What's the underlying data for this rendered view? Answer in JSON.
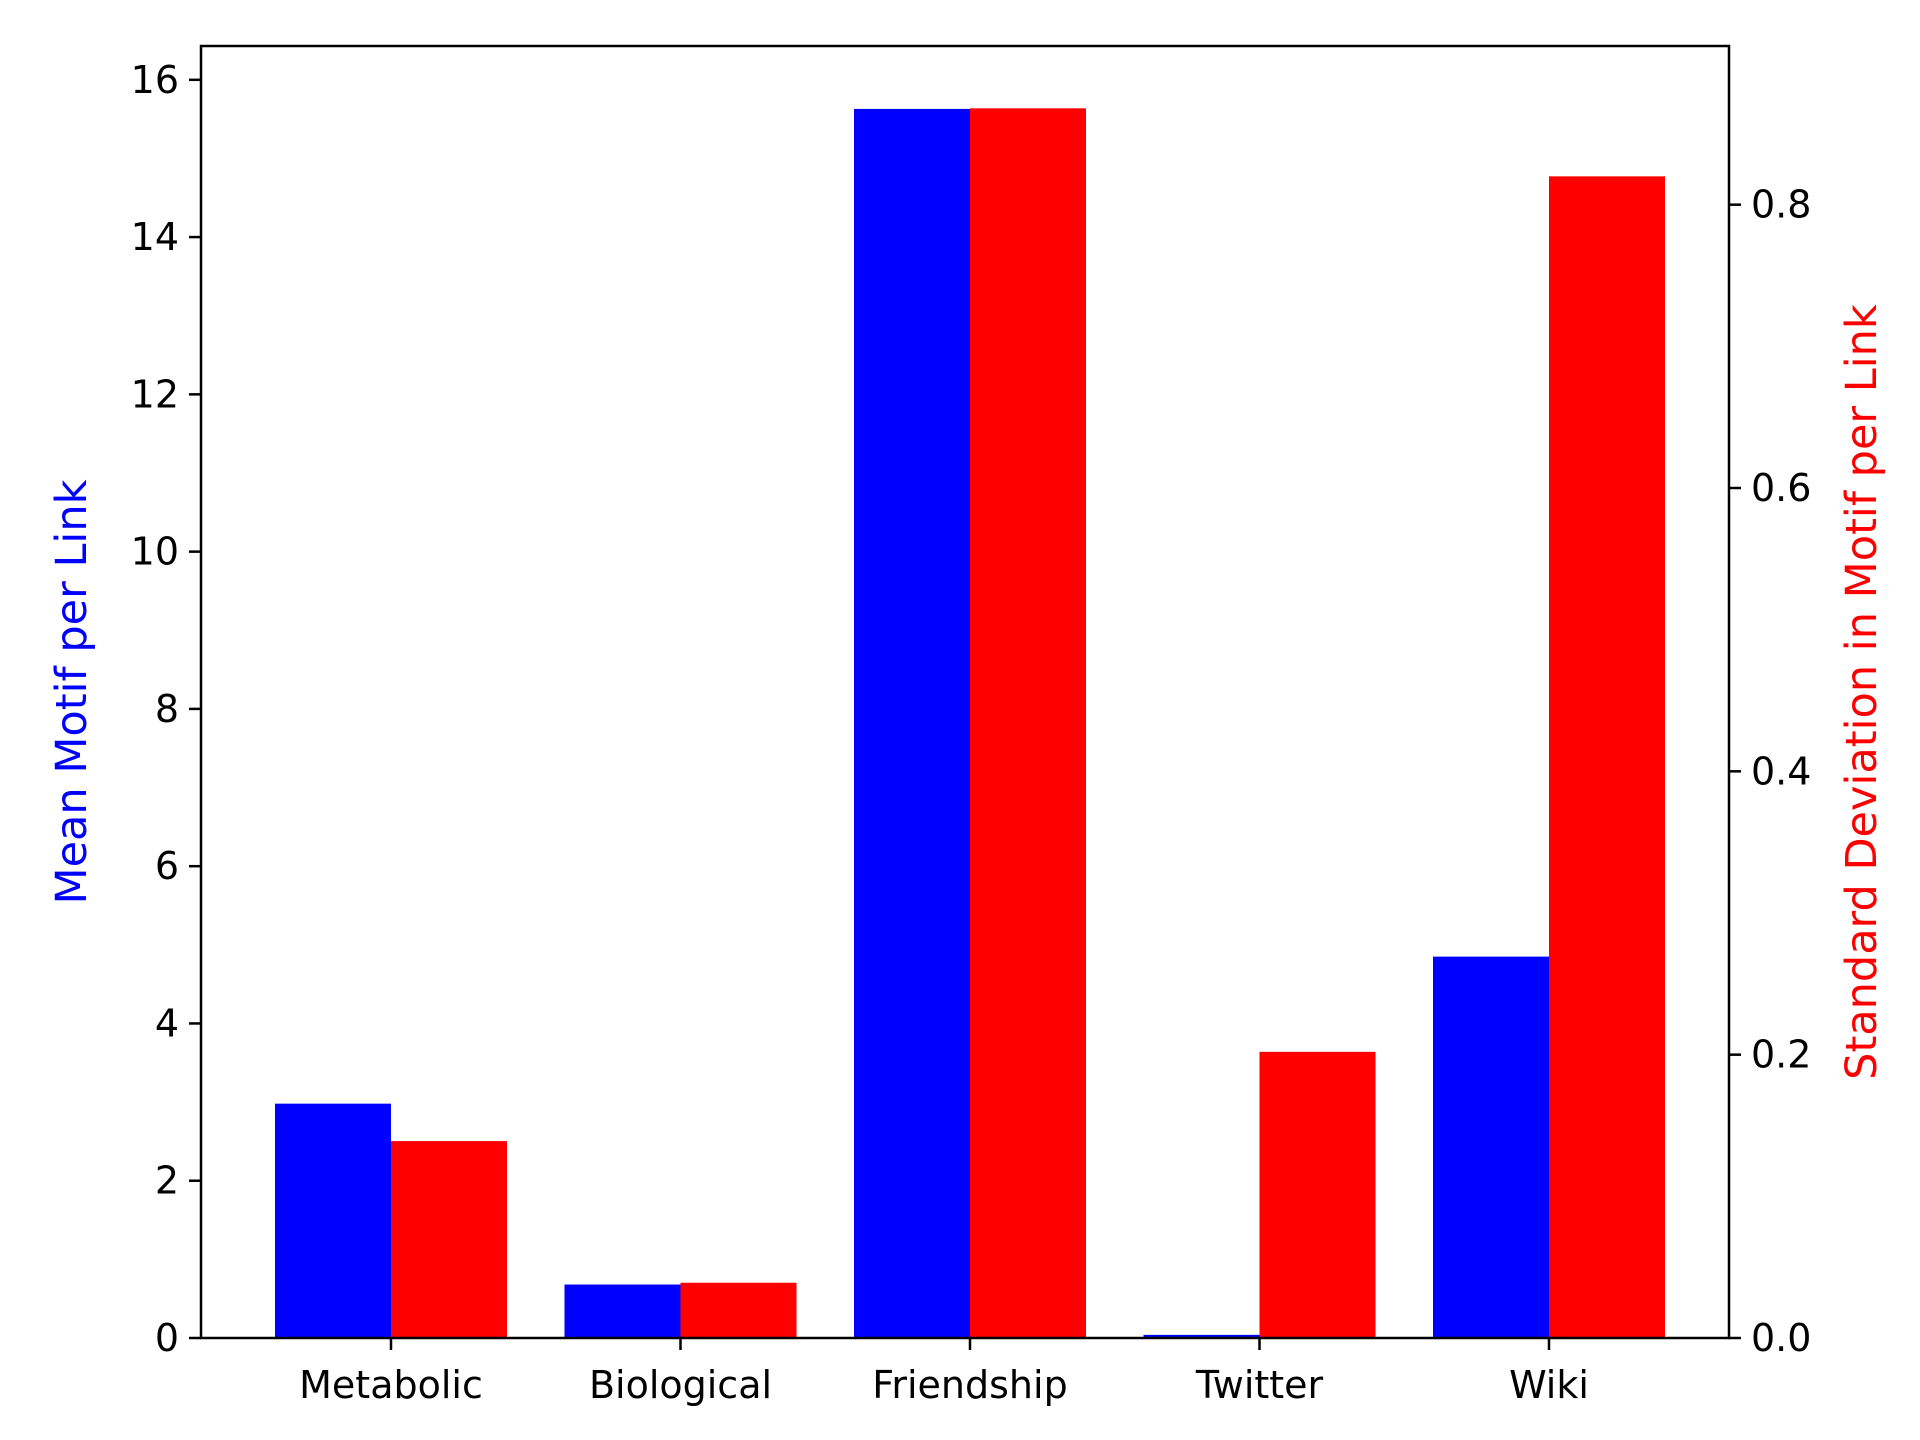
{
  "chart_data": {
    "type": "bar",
    "title": "",
    "categories": [
      "Metabolic",
      "Biological",
      "Friendship",
      "Twitter",
      "Wiki"
    ],
    "series": [
      {
        "axis": "left",
        "color": "#0000ff",
        "values": [
          2.98,
          0.68,
          15.63,
          0.04,
          4.85
        ]
      },
      {
        "axis": "right",
        "color": "#ff0000",
        "values": [
          0.139,
          0.039,
          0.868,
          0.202,
          0.82
        ]
      }
    ],
    "y_left": {
      "label": "Mean Motif per Link",
      "label_color": "#0000ff",
      "ylim": [
        0,
        16.43
      ],
      "ticks": [
        0,
        2,
        4,
        6,
        8,
        10,
        12,
        14,
        16
      ]
    },
    "y_right": {
      "label": "Standard Deviation in Motif per Link",
      "label_color": "#ff0000",
      "ylim": [
        0,
        0.912
      ],
      "ticks": [
        0.0,
        0.2,
        0.4,
        0.6,
        0.8
      ]
    },
    "grid": false,
    "legend": "none"
  }
}
